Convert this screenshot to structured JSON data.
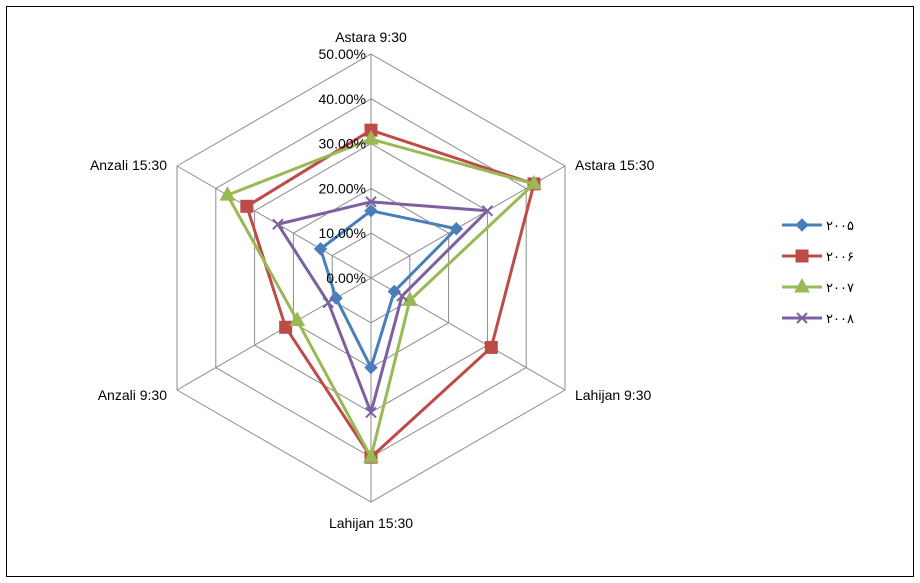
{
  "chart_data": {
    "type": "radar",
    "axes": [
      "Astara 9:30",
      "Astara 15:30",
      "Lahijan 9:30",
      "Lahijan 15:30",
      "Anzali 9:30",
      "Anzali 15:30"
    ],
    "tick_labels": [
      "0.00%",
      "10.00%",
      "20.00%",
      "30.00%",
      "40.00%",
      "50.00%"
    ],
    "range": [
      0,
      50
    ],
    "series": [
      {
        "name": "۲۰۰۵",
        "color": "#4a7ebb",
        "marker": "diamond",
        "values": [
          15,
          22,
          6,
          20,
          9,
          13
        ]
      },
      {
        "name": "۲۰۰۶",
        "color": "#be4b48",
        "marker": "square",
        "values": [
          33,
          42,
          31,
          40,
          22,
          32
        ]
      },
      {
        "name": "۲۰۰۷",
        "color": "#98b954",
        "marker": "triangle",
        "values": [
          31,
          42,
          10,
          40,
          19,
          37
        ]
      },
      {
        "name": "۲۰۰۸",
        "color": "#7d60a0",
        "marker": "x",
        "values": [
          17,
          30,
          8,
          30,
          11,
          24
        ]
      }
    ]
  }
}
